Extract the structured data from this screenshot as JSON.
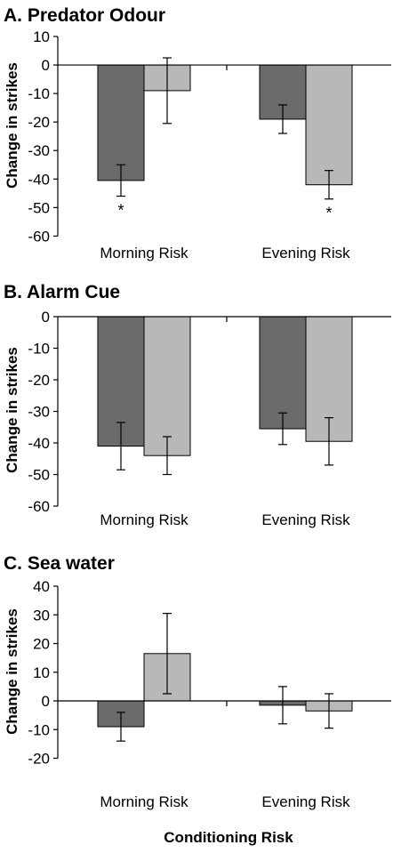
{
  "chart_data": [
    {
      "type": "bar",
      "title": "A. Predator Odour",
      "ylabel": "Change in strikes",
      "categories": [
        "Morning Risk",
        "Evening Risk"
      ],
      "ylim": [
        -60,
        10
      ],
      "yticks": [
        10,
        0,
        -10,
        -20,
        -30,
        -40,
        -50,
        -60
      ],
      "series": [
        {
          "values": [
            -40.5,
            -19
          ],
          "errors": [
            5.5,
            5
          ],
          "color": "#6b6b6b"
        },
        {
          "values": [
            -9,
            -42
          ],
          "errors": [
            11.5,
            5
          ],
          "color": "#b8b8b8"
        }
      ],
      "annotations": [
        {
          "category": 0,
          "series": 0,
          "text": "*"
        },
        {
          "category": 1,
          "series": 1,
          "text": "*"
        }
      ]
    },
    {
      "type": "bar",
      "title": "B. Alarm Cue",
      "ylabel": "Change in strikes",
      "categories": [
        "Morning Risk",
        "Evening Risk"
      ],
      "ylim": [
        -60,
        0
      ],
      "yticks": [
        0,
        -10,
        -20,
        -30,
        -40,
        -50,
        -60
      ],
      "series": [
        {
          "values": [
            -41,
            -35.5
          ],
          "errors": [
            7.5,
            5
          ],
          "color": "#6b6b6b"
        },
        {
          "values": [
            -44,
            -39.5
          ],
          "errors": [
            6,
            7.5
          ],
          "color": "#b8b8b8"
        }
      ],
      "annotations": []
    },
    {
      "type": "bar",
      "title": "C. Sea water",
      "ylabel": "Change in strikes",
      "categories": [
        "Morning Risk",
        "Evening Risk"
      ],
      "ylim": [
        -20,
        40
      ],
      "yticks": [
        40,
        30,
        20,
        10,
        0,
        -10,
        -20
      ],
      "series": [
        {
          "values": [
            -9,
            -1.5
          ],
          "errors": [
            5,
            6.5
          ],
          "color": "#6b6b6b"
        },
        {
          "values": [
            16.5,
            -3.5
          ],
          "errors": [
            14,
            6
          ],
          "color": "#b8b8b8"
        }
      ],
      "annotations": []
    }
  ],
  "xlabel": "Conditioning Risk"
}
